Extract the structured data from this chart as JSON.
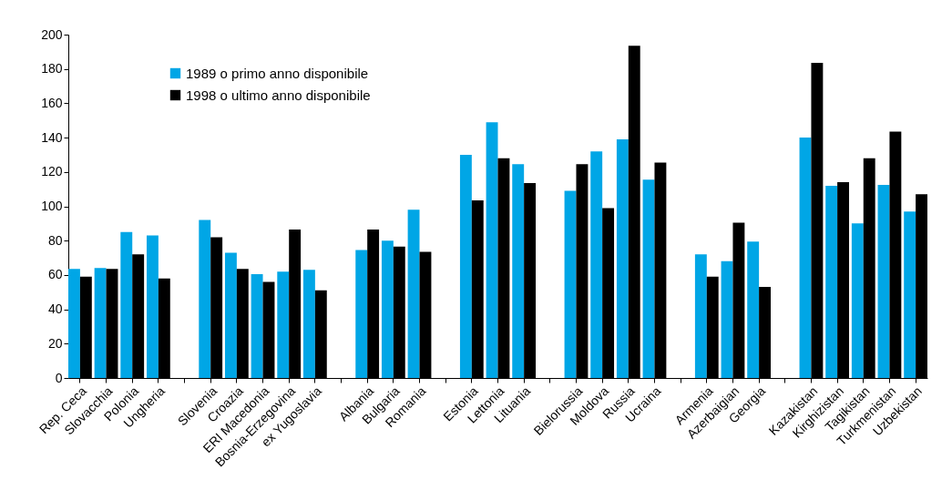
{
  "chart_data": {
    "type": "bar",
    "categories": [
      "Rep. Ceca",
      "Slovacchia",
      "Polonia",
      "Ungheria",
      null,
      "Slovenia",
      "Croazia",
      "ERI Macedonia",
      "Bosnia-Erzegovina",
      "ex Yugoslavia",
      null,
      "Albania",
      "Bulgaria",
      "Romania",
      null,
      "Estonia",
      "Lettonia",
      "Lituania",
      null,
      "Bielorussia",
      "Moldova",
      "Russia",
      "Ucraina",
      null,
      "Armenia",
      "Azerbaigian",
      "Georgia",
      null,
      "Kazakistan",
      "Kirghizistan",
      "Tagikistan",
      "Turkmenistan",
      "Uzbekistan"
    ],
    "series": [
      {
        "name": "1989 o primo anno disponibile",
        "color": "#00a6e6",
        "values": [
          63.5,
          64,
          85,
          83,
          null,
          92,
          73,
          60.5,
          62,
          63,
          null,
          74.5,
          80,
          98,
          null,
          130,
          149,
          124.5,
          null,
          109,
          132,
          139,
          115.5,
          null,
          72,
          68,
          79.5,
          null,
          140,
          112,
          90,
          112.5,
          97
        ]
      },
      {
        "name": "1998 o ultimo anno disponibile",
        "color": "#000000",
        "values": [
          59,
          63.5,
          72,
          58,
          null,
          82,
          63.5,
          56,
          86.5,
          51,
          null,
          86.5,
          76.5,
          73.5,
          null,
          103.5,
          128,
          113.5,
          null,
          124.5,
          99,
          193.5,
          125.5,
          null,
          59,
          90.5,
          53,
          null,
          183.5,
          114,
          128,
          143.5,
          107
        ]
      }
    ],
    "ylim": [
      0,
      200
    ],
    "yticks": [
      0,
      20,
      40,
      60,
      80,
      100,
      120,
      140,
      160,
      180,
      200
    ],
    "grid": false,
    "legend": "top left"
  }
}
